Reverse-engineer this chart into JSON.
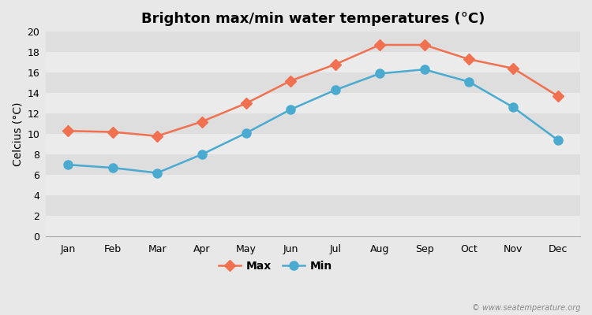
{
  "title": "Brighton max/min water temperatures (°C)",
  "ylabel": "Celcius (°C)",
  "months": [
    "Jan",
    "Feb",
    "Mar",
    "Apr",
    "May",
    "Jun",
    "Jul",
    "Aug",
    "Sep",
    "Oct",
    "Nov",
    "Dec"
  ],
  "max_temps": [
    10.3,
    10.2,
    9.8,
    11.2,
    13.0,
    15.2,
    16.8,
    18.7,
    18.7,
    17.3,
    16.4,
    13.7
  ],
  "min_temps": [
    7.0,
    6.7,
    6.2,
    8.0,
    10.1,
    12.4,
    14.3,
    15.9,
    16.3,
    15.1,
    12.6,
    9.4
  ],
  "max_color": "#f07050",
  "min_color": "#4aaad0",
  "bg_color": "#e8e8e8",
  "band_light": "#ebebeb",
  "band_dark": "#dedede",
  "grid_color": "#ffffff",
  "ylim": [
    0,
    20
  ],
  "yticks": [
    0,
    2,
    4,
    6,
    8,
    10,
    12,
    14,
    16,
    18,
    20
  ],
  "max_marker": "D",
  "min_marker": "o",
  "max_marker_size": 7,
  "min_marker_size": 8,
  "line_width": 1.8,
  "title_fontsize": 13,
  "axis_label_fontsize": 10,
  "tick_fontsize": 9,
  "legend_fontsize": 10,
  "watermark": "© www.seatemperature.org"
}
